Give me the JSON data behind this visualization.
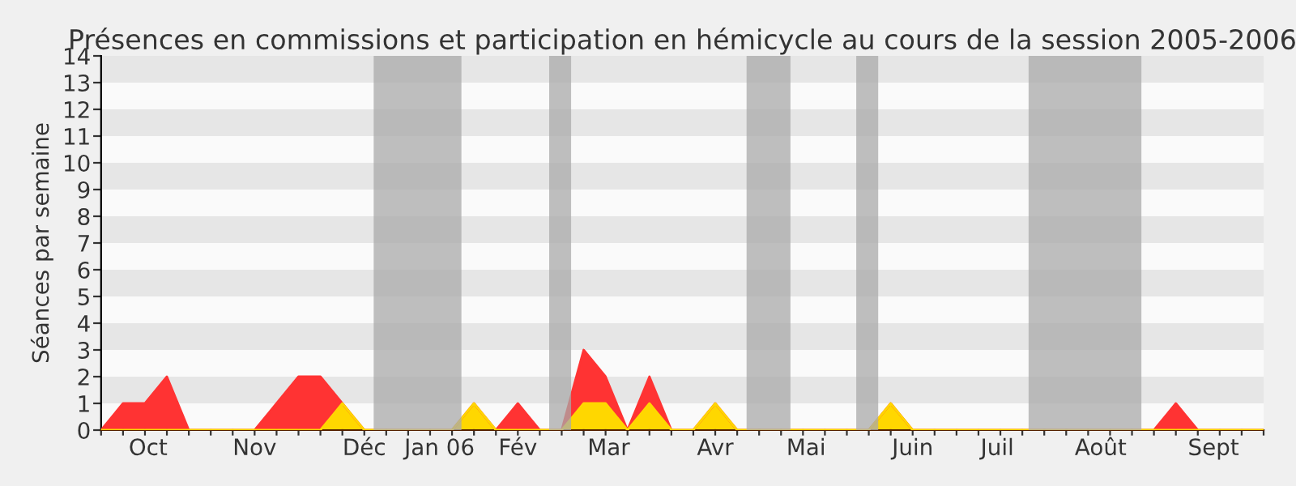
{
  "chart_data": {
    "type": "area",
    "title": "Présences en commissions et participation en hémicycle au cours de la session 2005-2006",
    "ylabel": "Séances par semaine",
    "x": [
      "2005-10-01",
      "2005-10-08",
      "2005-10-15",
      "2005-10-22",
      "2005-10-29",
      "2005-11-05",
      "2005-11-12",
      "2005-11-19",
      "2005-11-26",
      "2005-12-03",
      "2005-12-10",
      "2005-12-17",
      "2005-12-24",
      "2005-12-31",
      "2006-01-07",
      "2006-01-14",
      "2006-01-21",
      "2006-01-28",
      "2006-02-04",
      "2006-02-11",
      "2006-02-18",
      "2006-02-25",
      "2006-03-04",
      "2006-03-11",
      "2006-03-18",
      "2006-03-25",
      "2006-04-01",
      "2006-04-08",
      "2006-04-15",
      "2006-04-22",
      "2006-04-29",
      "2006-05-06",
      "2006-05-13",
      "2006-05-20",
      "2006-05-27",
      "2006-06-03",
      "2006-06-10",
      "2006-06-17",
      "2006-06-24",
      "2006-07-01",
      "2006-07-08",
      "2006-07-15",
      "2006-07-22",
      "2006-07-29",
      "2006-08-05",
      "2006-08-12",
      "2006-08-19",
      "2006-08-26",
      "2006-09-02",
      "2006-09-09",
      "2006-09-16",
      "2006-09-23",
      "2006-09-30",
      "2006-10-07"
    ],
    "series": [
      {
        "color": "#ff3333",
        "values": [
          0,
          1,
          1,
          2,
          0,
          0,
          0,
          0,
          1,
          2,
          2,
          1,
          0,
          0,
          0,
          0,
          0,
          1,
          0,
          1,
          0,
          0,
          3,
          2,
          0,
          2,
          0,
          0,
          1,
          0,
          0,
          0,
          0,
          0,
          0,
          0,
          1,
          0,
          0,
          0,
          0,
          0,
          0,
          0,
          0,
          0,
          0,
          0,
          0,
          1,
          0,
          0,
          0,
          0
        ]
      },
      {
        "color": "#ffd700",
        "values": [
          0,
          0,
          0,
          0,
          0,
          0,
          0,
          0,
          0,
          0,
          0,
          1,
          0,
          0,
          0,
          0,
          0,
          1,
          0,
          0,
          0,
          0,
          1,
          1,
          0,
          1,
          0,
          0,
          1,
          0,
          0,
          0,
          0,
          0,
          0,
          0,
          1,
          0,
          0,
          0,
          0,
          0,
          0,
          0,
          0,
          0,
          0,
          0,
          0,
          0,
          0,
          0,
          0,
          0
        ]
      }
    ],
    "xlim": [
      "2005-10-01",
      "2006-10-07"
    ],
    "xticks": [
      {
        "value": "2005-10-16",
        "label": "Oct"
      },
      {
        "value": "2005-11-19",
        "label": "Nov"
      },
      {
        "value": "2005-12-24",
        "label": "Déc"
      },
      {
        "value": "2006-01-17",
        "label": "Jan 06"
      },
      {
        "value": "2006-02-11",
        "label": "Fév"
      },
      {
        "value": "2006-03-12",
        "label": "Mar"
      },
      {
        "value": "2006-04-15",
        "label": "Avr"
      },
      {
        "value": "2006-05-14",
        "label": "Mai"
      },
      {
        "value": "2006-06-17",
        "label": "Juin"
      },
      {
        "value": "2006-07-14",
        "label": "Juil"
      },
      {
        "value": "2006-08-16",
        "label": "Août"
      },
      {
        "value": "2006-09-21",
        "label": "Sept"
      }
    ],
    "ylim": [
      0,
      14
    ],
    "yticks": [
      0,
      1,
      2,
      3,
      4,
      5,
      6,
      7,
      8,
      9,
      10,
      11,
      12,
      13,
      14
    ],
    "bands": [
      {
        "axis": "x",
        "from": "2005-12-27",
        "to": "2006-01-24",
        "color": "#aaaaaa"
      },
      {
        "axis": "x",
        "from": "2006-02-21",
        "to": "2006-02-28",
        "color": "#aaaaaa"
      },
      {
        "axis": "x",
        "from": "2006-04-25",
        "to": "2006-05-09",
        "color": "#aaaaaa"
      },
      {
        "axis": "x",
        "from": "2006-05-30",
        "to": "2006-06-06",
        "color": "#aaaaaa"
      },
      {
        "axis": "x",
        "from": "2006-07-24",
        "to": "2006-08-29",
        "color": "#aaaaaa"
      }
    ]
  }
}
